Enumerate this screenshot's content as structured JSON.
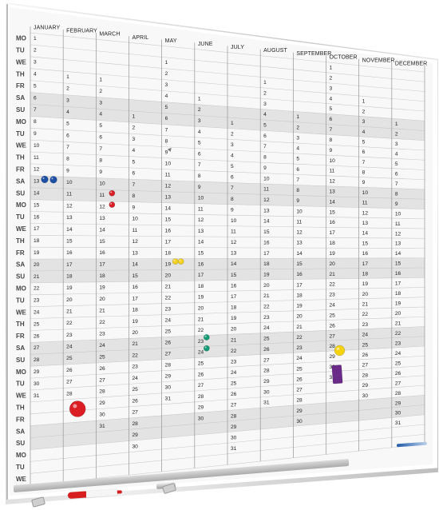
{
  "planner": {
    "weekdays": [
      "MO",
      "TU",
      "WE",
      "TH",
      "FR",
      "SA",
      "SU",
      "MO",
      "TU",
      "WE",
      "TH",
      "FR",
      "SA",
      "SU",
      "MO",
      "TU",
      "WE",
      "TH",
      "FR",
      "SA",
      "SU",
      "MO",
      "TU",
      "WE",
      "TH",
      "FR",
      "SA",
      "SU",
      "MO",
      "TU",
      "WE",
      "TH",
      "FR",
      "SA",
      "SU",
      "MO",
      "TU",
      "WE"
    ],
    "months": [
      {
        "name": "JANUARY",
        "start_row": 0,
        "days": 31
      },
      {
        "name": "FEBRUARY",
        "start_row": 3,
        "days": 28
      },
      {
        "name": "MARCH",
        "start_row": 3,
        "days": 31
      },
      {
        "name": "APRIL",
        "start_row": 6,
        "days": 30
      },
      {
        "name": "MAY",
        "start_row": 1,
        "days": 31
      },
      {
        "name": "JUNE",
        "start_row": 4,
        "days": 30
      },
      {
        "name": "JULY",
        "start_row": 6,
        "days": 31
      },
      {
        "name": "AUGUST",
        "start_row": 2,
        "days": 31
      },
      {
        "name": "SEPTEMBER",
        "start_row": 5,
        "days": 30
      },
      {
        "name": "OCTOBER",
        "start_row": 0,
        "days": 31
      },
      {
        "name": "NOVEMBER",
        "start_row": 3,
        "days": 30
      },
      {
        "name": "DECEMBER",
        "start_row": 5,
        "days": 31
      }
    ],
    "shaded_weekdays": [
      "SA",
      "SU"
    ],
    "magnets": [
      {
        "name": "blue-magnet",
        "color": "#1d4fa4"
      },
      {
        "name": "blue-magnet",
        "color": "#1d4fa4"
      },
      {
        "name": "red-magnet",
        "color": "#d91f25"
      },
      {
        "name": "red-magnet",
        "color": "#d91f25"
      },
      {
        "name": "yellow-magnet",
        "color": "#f4d11f"
      },
      {
        "name": "yellow-magnet",
        "color": "#f4d11f"
      },
      {
        "name": "green-magnet",
        "color": "#129a75"
      },
      {
        "name": "green-magnet",
        "color": "#129a75"
      },
      {
        "name": "large-red-magnet",
        "color": "#db1d24"
      },
      {
        "name": "large-yellow-magnet",
        "color": "#f5d313"
      },
      {
        "name": "purple-magnet",
        "color": "#6a2a88"
      }
    ]
  }
}
